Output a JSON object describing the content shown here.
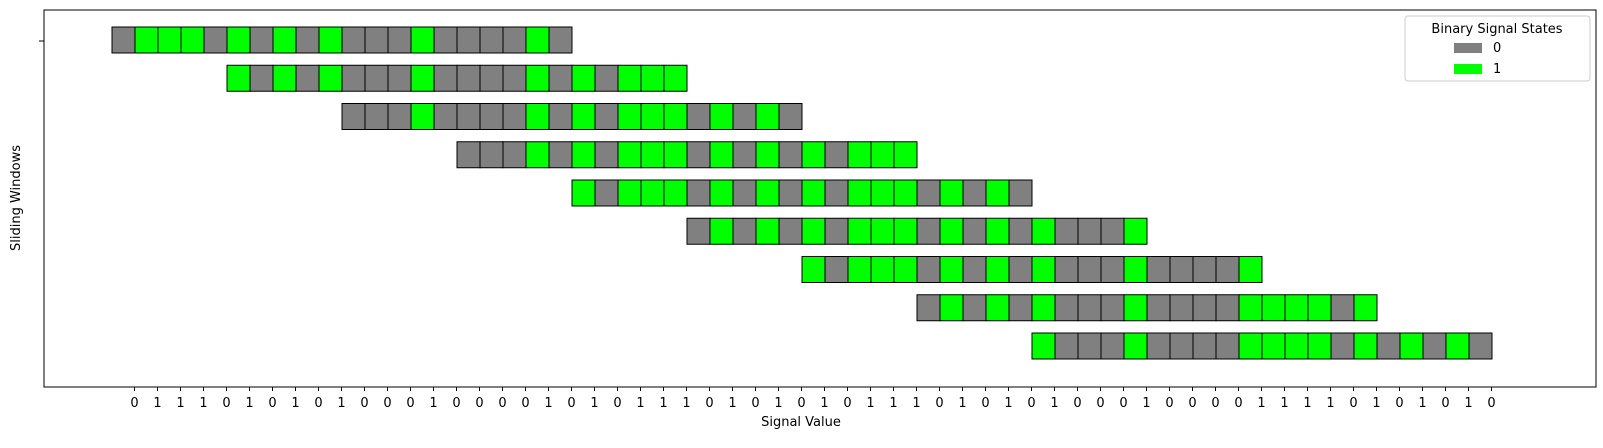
{
  "chart_data": {
    "type": "heatmap",
    "title": "",
    "xlabel": "Signal Value",
    "ylabel": "Sliding Windows",
    "signal": [
      0,
      1,
      1,
      1,
      0,
      1,
      0,
      1,
      0,
      1,
      0,
      0,
      0,
      1,
      0,
      0,
      0,
      0,
      1,
      0,
      1,
      0,
      1,
      1,
      1,
      0,
      1,
      0,
      1,
      0,
      1,
      0,
      1,
      1,
      1,
      0,
      1,
      0,
      1,
      0,
      1,
      0,
      0,
      0,
      1,
      0,
      0,
      0,
      0,
      1,
      1,
      1,
      1,
      0,
      1,
      0,
      1,
      0,
      1,
      0
    ],
    "x_tick_labels": [
      "0",
      "1",
      "1",
      "1",
      "0",
      "1",
      "0",
      "1",
      "0",
      "1",
      "0",
      "0",
      "0",
      "1",
      "0",
      "0",
      "0",
      "0",
      "1",
      "0",
      "1",
      "0",
      "1",
      "1",
      "1",
      "0",
      "1",
      "0",
      "1",
      "0",
      "1",
      "0",
      "1",
      "1",
      "1",
      "0",
      "1",
      "0",
      "1",
      "0",
      "1",
      "0",
      "0",
      "0",
      "1",
      "0",
      "0",
      "0",
      "0",
      "1",
      "1",
      "1",
      "1",
      "0",
      "1",
      "0",
      "1",
      "0",
      "1",
      "0"
    ],
    "window_size": 20,
    "window_step": 5,
    "window_starts": [
      0,
      5,
      10,
      15,
      20,
      25,
      30,
      35,
      40
    ],
    "legend": {
      "title": "Binary Signal States",
      "placement": "top-right",
      "entries": [
        {
          "label": "0",
          "color": "#808080"
        },
        {
          "label": "1",
          "color": "#00ff00"
        }
      ]
    },
    "colors": {
      "state_0": "#808080",
      "state_1": "#00ff00",
      "edge": "#000000"
    },
    "grid": false
  }
}
